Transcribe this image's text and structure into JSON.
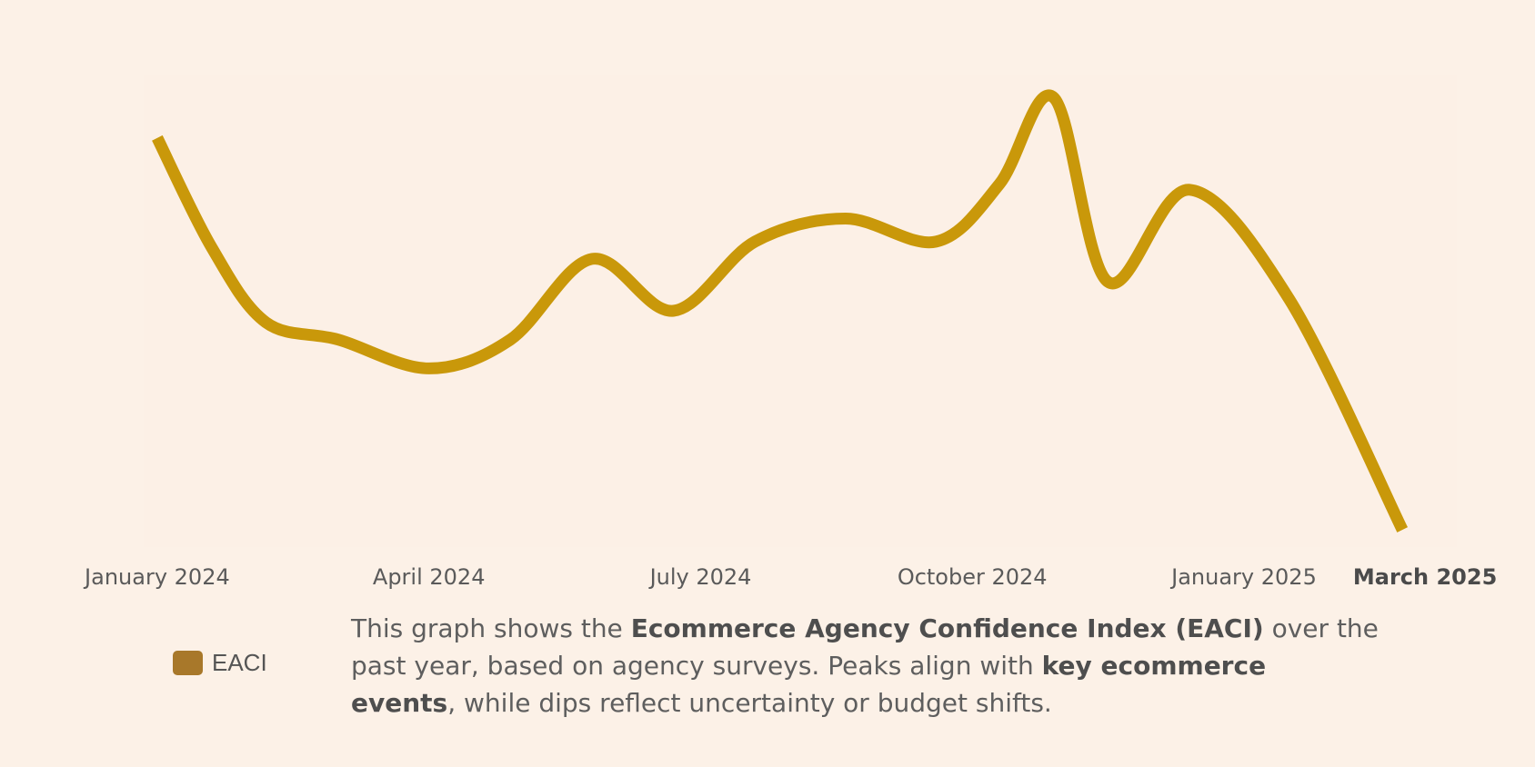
{
  "chart_data": {
    "type": "line",
    "xlabel": "",
    "ylabel": "",
    "grid": false,
    "x_ticks": [
      "January 2024",
      "April 2024",
      "July 2024",
      "October 2024",
      "January 2025",
      "March 2025"
    ],
    "x_tick_positions": [
      0,
      3,
      6,
      9,
      12,
      14
    ],
    "highlight_tick": "March 2025",
    "series": [
      {
        "color": "#c9980a",
        "points": [
          [
            0.0,
            71
          ],
          [
            0.6,
            52
          ],
          [
            1.2,
            39
          ],
          [
            2.0,
            36
          ],
          [
            3.0,
            31
          ],
          [
            3.9,
            36
          ],
          [
            4.8,
            50
          ],
          [
            5.7,
            41
          ],
          [
            6.6,
            53
          ],
          [
            7.6,
            57
          ],
          [
            8.6,
            53
          ],
          [
            9.3,
            63
          ],
          [
            9.9,
            78
          ],
          [
            10.5,
            46
          ],
          [
            11.4,
            62
          ],
          [
            12.5,
            43
          ],
          [
            13.75,
            3
          ]
        ]
      }
    ],
    "ylim": [
      0,
      82
    ],
    "xlim": [
      -0.15,
      14.35
    ]
  },
  "legend": {
    "label": "EACI",
    "color": "#a8782a"
  },
  "caption": {
    "part1": "This graph shows the ",
    "bold1": "Ecommerce Agency Confidence Index (EACI)",
    "part2": " over the past year, based on agency surveys. Peaks align with ",
    "bold2": "key ecommerce events",
    "part3": ", while dips reflect uncertainty or budget shifts."
  }
}
